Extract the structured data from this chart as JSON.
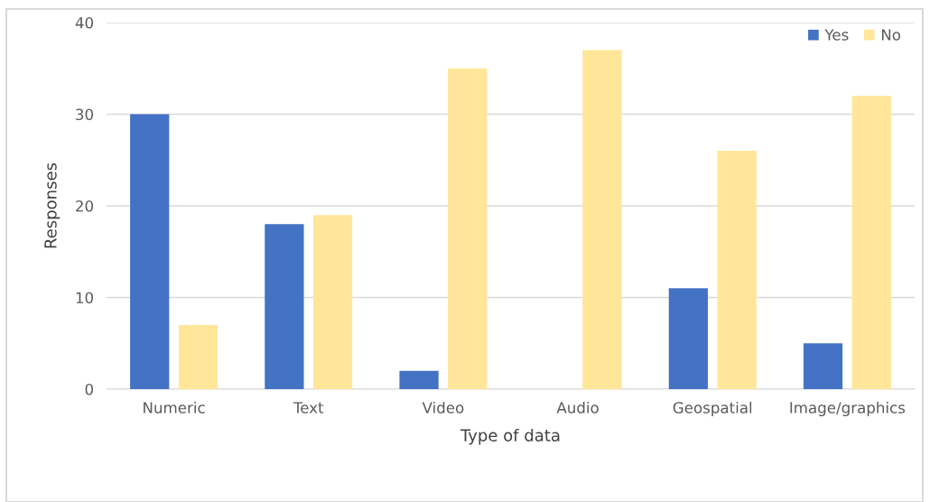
{
  "chart_data": {
    "type": "bar",
    "xlabel": "Type of data",
    "ylabel": "Responses",
    "categories": [
      "Numeric",
      "Text",
      "Video",
      "Audio",
      "Geospatial",
      "Image/graphics"
    ],
    "series": [
      {
        "name": "Yes",
        "color": "#4472c4",
        "values": [
          30,
          18,
          2,
          0,
          11,
          5
        ]
      },
      {
        "name": "No",
        "color": "#ffe699",
        "values": [
          7,
          19,
          35,
          37,
          26,
          32
        ]
      }
    ],
    "ylim": [
      0,
      40
    ],
    "yticks": [
      0,
      10,
      20,
      30,
      40
    ],
    "grid": "y",
    "legend": "top right"
  }
}
